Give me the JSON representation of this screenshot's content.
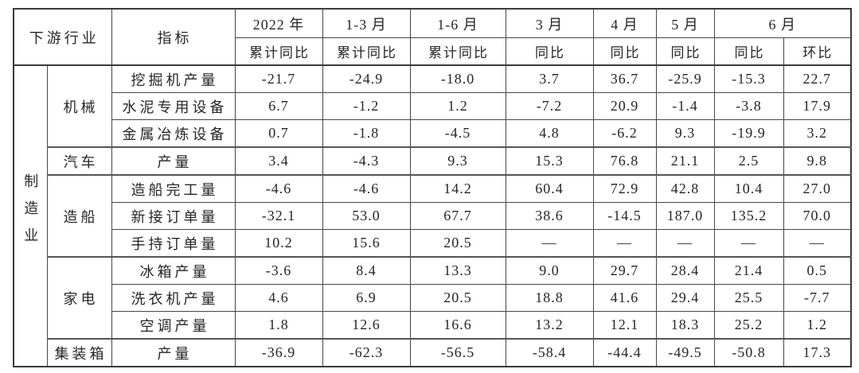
{
  "chart_data": {
    "type": "table",
    "header": {
      "industry_label": "下游行业",
      "indicator_label": "指标",
      "periods": [
        {
          "label": "2022 年",
          "sub": [
            "累计同比"
          ]
        },
        {
          "label": "1-3 月",
          "sub": [
            "累计同比"
          ]
        },
        {
          "label": "1-6 月",
          "sub": [
            "累计同比"
          ]
        },
        {
          "label": "3 月",
          "sub": [
            "同比"
          ]
        },
        {
          "label": "4 月",
          "sub": [
            "同比"
          ]
        },
        {
          "label": "5 月",
          "sub": [
            "同比"
          ]
        },
        {
          "label": "6 月",
          "sub": [
            "同比",
            "环比"
          ]
        }
      ]
    },
    "sector": "制造业",
    "groups": [
      {
        "name": "机械",
        "rows": [
          {
            "indicator": "挖掘机产量",
            "values": [
              "-21.7",
              "-24.9",
              "-18.0",
              "3.7",
              "36.7",
              "-25.9",
              "-15.3",
              "22.7"
            ]
          },
          {
            "indicator": "水泥专用设备",
            "values": [
              "6.7",
              "-1.2",
              "1.2",
              "-7.2",
              "20.9",
              "-1.4",
              "-3.8",
              "17.9"
            ]
          },
          {
            "indicator": "金属冶炼设备",
            "values": [
              "0.7",
              "-1.8",
              "-4.5",
              "4.8",
              "-6.2",
              "9.3",
              "-19.9",
              "3.2"
            ]
          }
        ]
      },
      {
        "name": "汽车",
        "rows": [
          {
            "indicator": "产量",
            "values": [
              "3.4",
              "-4.3",
              "9.3",
              "15.3",
              "76.8",
              "21.1",
              "2.5",
              "9.8"
            ]
          }
        ]
      },
      {
        "name": "造船",
        "rows": [
          {
            "indicator": "造船完工量",
            "values": [
              "-4.6",
              "-4.6",
              "14.2",
              "60.4",
              "72.9",
              "42.8",
              "10.4",
              "27.0"
            ]
          },
          {
            "indicator": "新接订单量",
            "values": [
              "-32.1",
              "53.0",
              "67.7",
              "38.6",
              "-14.5",
              "187.0",
              "135.2",
              "70.0"
            ]
          },
          {
            "indicator": "手持订单量",
            "values": [
              "10.2",
              "15.6",
              "20.5",
              "—",
              "—",
              "—",
              "—",
              "—"
            ]
          }
        ]
      },
      {
        "name": "家电",
        "rows": [
          {
            "indicator": "冰箱产量",
            "values": [
              "-3.6",
              "8.4",
              "13.3",
              "9.0",
              "29.7",
              "28.4",
              "21.4",
              "0.5"
            ]
          },
          {
            "indicator": "洗衣机产量",
            "values": [
              "4.6",
              "6.9",
              "20.5",
              "18.8",
              "41.6",
              "29.4",
              "25.5",
              "-7.7"
            ]
          },
          {
            "indicator": "空调产量",
            "values": [
              "1.8",
              "12.6",
              "16.6",
              "13.2",
              "12.1",
              "18.3",
              "25.2",
              "1.2"
            ]
          }
        ]
      },
      {
        "name": "集装箱",
        "rows": [
          {
            "indicator": "产量",
            "values": [
              "-36.9",
              "-62.3",
              "-56.5",
              "-58.4",
              "-44.4",
              "-49.5",
              "-50.8",
              "17.3"
            ]
          }
        ]
      }
    ],
    "colors": {
      "background": "#ffffff",
      "text": "#262626",
      "border": "#3a3a3a"
    }
  }
}
